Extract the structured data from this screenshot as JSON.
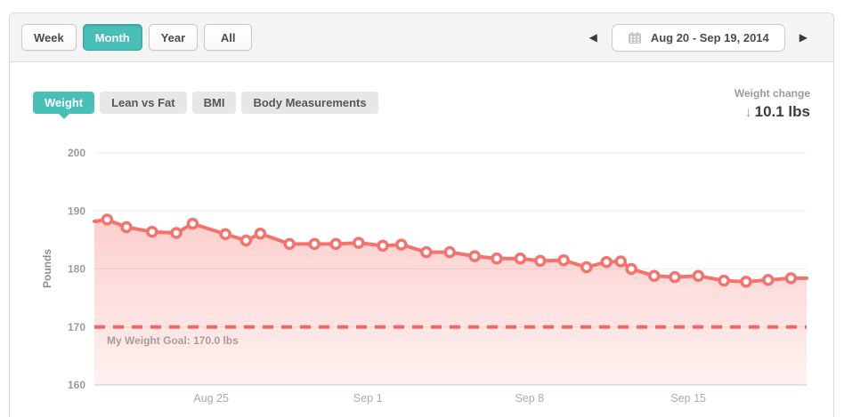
{
  "header": {
    "range_buttons": [
      {
        "label": "Week",
        "active": false
      },
      {
        "label": "Month",
        "active": true
      },
      {
        "label": "Year",
        "active": false
      },
      {
        "label": "All",
        "active": false
      }
    ],
    "date_navigator": {
      "prev_icon": "◀",
      "next_icon": "▶",
      "calendar_icon": "calendar",
      "range_label": "Aug 20 - Sep 19, 2014"
    }
  },
  "tabs": [
    {
      "label": "Weight",
      "active": true
    },
    {
      "label": "Lean vs Fat",
      "active": false
    },
    {
      "label": "BMI",
      "active": false
    },
    {
      "label": "Body Measurements",
      "active": false
    }
  ],
  "weight_change": {
    "label": "Weight change",
    "direction": "down",
    "arrow_icon": "↓",
    "value": "10.1 lbs"
  },
  "colors": {
    "accent_teal": "#48c0b8",
    "line_salmon": "#f4736d",
    "goal_line": "#f2685f",
    "grid_line": "#ededed",
    "axis_line": "#c9c9c9",
    "y_tick_text": "#9b9b9b",
    "x_tick_text": "#ababab",
    "goal_text": "#a79c9a",
    "y_title_text": "#8e8e8e"
  },
  "chart_data": {
    "type": "area",
    "ylabel": "Pounds",
    "ylim": [
      160,
      200
    ],
    "y_ticks": [
      200,
      190,
      180,
      170,
      160
    ],
    "x_ticks": [
      {
        "label": "Aug 25",
        "f": 0.164
      },
      {
        "label": "Sep 1",
        "f": 0.384
      },
      {
        "label": "Sep 8",
        "f": 0.611
      },
      {
        "label": "Sep 15",
        "f": 0.834
      }
    ],
    "x_range": [
      "Aug 20, 2014",
      "Sep 19, 2014"
    ],
    "grid": true,
    "legend": "none",
    "goal": {
      "value": 170.0,
      "label": "My Weight Goal: 170.0 lbs"
    },
    "series": [
      {
        "name": "Weight (lbs)",
        "points": [
          [
            0.0,
            188.2
          ],
          [
            0.018,
            188.5
          ],
          [
            0.045,
            187.2
          ],
          [
            0.081,
            186.4
          ],
          [
            0.115,
            186.2
          ],
          [
            0.138,
            187.8
          ],
          [
            0.184,
            186.0
          ],
          [
            0.213,
            184.9
          ],
          [
            0.233,
            186.1
          ],
          [
            0.274,
            184.3
          ],
          [
            0.309,
            184.3
          ],
          [
            0.339,
            184.3
          ],
          [
            0.371,
            184.5
          ],
          [
            0.405,
            184.0
          ],
          [
            0.431,
            184.2
          ],
          [
            0.466,
            182.9
          ],
          [
            0.499,
            182.9
          ],
          [
            0.534,
            182.2
          ],
          [
            0.565,
            181.8
          ],
          [
            0.598,
            181.8
          ],
          [
            0.626,
            181.4
          ],
          [
            0.659,
            181.5
          ],
          [
            0.691,
            180.3
          ],
          [
            0.719,
            181.2
          ],
          [
            0.739,
            181.3
          ],
          [
            0.754,
            180.0
          ],
          [
            0.786,
            178.8
          ],
          [
            0.815,
            178.6
          ],
          [
            0.848,
            178.8
          ],
          [
            0.884,
            178.0
          ],
          [
            0.915,
            177.8
          ],
          [
            0.946,
            178.1
          ],
          [
            0.978,
            178.4
          ],
          [
            1.0,
            178.4
          ]
        ]
      }
    ]
  }
}
